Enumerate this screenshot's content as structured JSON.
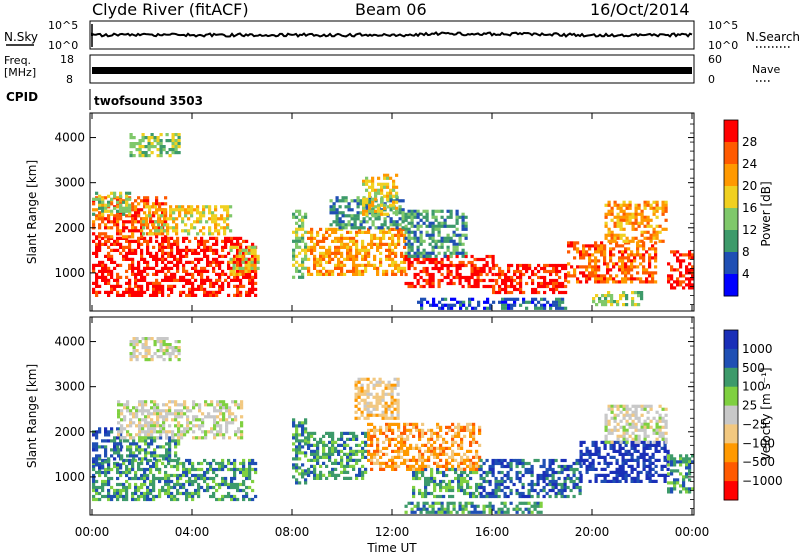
{
  "header": {
    "station": "Clyde River (fitACF)",
    "beam": "Beam 06",
    "date": "16/Oct/2014"
  },
  "top_panels": {
    "nsky_label": "N.Sky",
    "nsearch_label": "N.Search",
    "nsky_ticks": [
      "10^5",
      "10^0"
    ],
    "nsearch_ticks": [
      "10^5",
      "10^0"
    ],
    "freq_label_1": "Freq.",
    "freq_label_2": "[MHz]",
    "freq_ticks": [
      "18",
      "8"
    ],
    "nave_label": "Nave",
    "nave_ticks": [
      "60",
      "0"
    ],
    "cpid_label": "CPID",
    "cpid_value": "twofsound 3503"
  },
  "colors": {
    "power_scale": [
      "#0000ff",
      "#1f4fb4",
      "#3d9a6a",
      "#7fc86a",
      "#f0d020",
      "#ff9900",
      "#ff5a00",
      "#ff0000"
    ],
    "velocity_scale": [
      "#ff0000",
      "#ff5a00",
      "#ff9900",
      "#f2c880",
      "#c8c8c8",
      "#7fd040",
      "#3d9a6a",
      "#1f4fb4",
      "#1a2fb8"
    ]
  },
  "chart_data": [
    {
      "type": "heatmap",
      "name": "Power",
      "xlabel": "",
      "ylabel": "Slant Range [km]",
      "xlim": [
        0,
        24
      ],
      "ylim": [
        200,
        4500
      ],
      "x_ticks": [
        "00:00",
        "04:00",
        "08:00",
        "12:00",
        "16:00",
        "20:00",
        "00:00"
      ],
      "y_ticks": [
        1000,
        2000,
        3000,
        4000
      ],
      "colorbar_label": "Power [dB]",
      "colorbar_ticks": [
        "4",
        "8",
        "12",
        "16",
        "20",
        "24",
        "28"
      ],
      "regions": [
        {
          "t": [
            0.0,
            6.6
          ],
          "r": [
            500,
            1800
          ],
          "level": 7
        },
        {
          "t": [
            0.0,
            3.0
          ],
          "r": [
            1800,
            2700
          ],
          "level": 6
        },
        {
          "t": [
            2.0,
            5.5
          ],
          "r": [
            1900,
            2500
          ],
          "level": 4
        },
        {
          "t": [
            0.0,
            1.5
          ],
          "r": [
            2300,
            2800
          ],
          "level": 3
        },
        {
          "t": [
            1.5,
            3.5
          ],
          "r": [
            3600,
            4100
          ],
          "level": 3
        },
        {
          "t": [
            5.5,
            6.6
          ],
          "r": [
            1000,
            1600
          ],
          "level": 4
        },
        {
          "t": [
            8.0,
            8.6
          ],
          "r": [
            900,
            2400
          ],
          "level": 3
        },
        {
          "t": [
            8.6,
            12.5
          ],
          "r": [
            1000,
            2000
          ],
          "level": 5
        },
        {
          "t": [
            9.5,
            12.5
          ],
          "r": [
            2000,
            2700
          ],
          "level": 2
        },
        {
          "t": [
            10.8,
            12.2
          ],
          "r": [
            2300,
            3200
          ],
          "level": 4
        },
        {
          "t": [
            12.5,
            16.0
          ],
          "r": [
            700,
            1400
          ],
          "level": 7
        },
        {
          "t": [
            12.5,
            15.0
          ],
          "r": [
            1400,
            2400
          ],
          "level": 2
        },
        {
          "t": [
            16.0,
            19.0
          ],
          "r": [
            600,
            1200
          ],
          "level": 7
        },
        {
          "t": [
            19.0,
            22.5
          ],
          "r": [
            800,
            1700
          ],
          "level": 6
        },
        {
          "t": [
            20.5,
            23.0
          ],
          "r": [
            1700,
            2600
          ],
          "level": 5
        },
        {
          "t": [
            23.0,
            24.0
          ],
          "r": [
            700,
            1500
          ],
          "level": 7
        },
        {
          "t": [
            20.0,
            22.0
          ],
          "r": [
            300,
            600
          ],
          "level": 3
        },
        {
          "t": [
            13.0,
            19.0
          ],
          "r": [
            200,
            450
          ],
          "level": 1
        }
      ]
    },
    {
      "type": "heatmap",
      "name": "Velocity",
      "xlabel": "Time UT",
      "ylabel": "Slant Range [km]",
      "xlim": [
        0,
        24
      ],
      "ylim": [
        200,
        4500
      ],
      "x_ticks": [
        "00:00",
        "04:00",
        "08:00",
        "12:00",
        "16:00",
        "20:00",
        "00:00"
      ],
      "y_ticks": [
        1000,
        2000,
        3000,
        4000
      ],
      "colorbar_label": "Velocity [m s⁻¹]",
      "colorbar_ticks": [
        "1000",
        "500",
        "100",
        "25",
        "−25",
        "−100",
        "−500",
        "−1000"
      ],
      "regions": [
        {
          "t": [
            0.0,
            6.6
          ],
          "r": [
            500,
            1400
          ],
          "level": 6
        },
        {
          "t": [
            0.0,
            1.2
          ],
          "r": [
            1200,
            2100
          ],
          "level": 7
        },
        {
          "t": [
            1.0,
            3.5
          ],
          "r": [
            1400,
            1900
          ],
          "level": 6
        },
        {
          "t": [
            1.0,
            6.0
          ],
          "r": [
            1900,
            2700
          ],
          "level": 4
        },
        {
          "t": [
            1.5,
            3.5
          ],
          "r": [
            3600,
            4100
          ],
          "level": 4
        },
        {
          "t": [
            8.0,
            8.6
          ],
          "r": [
            900,
            2300
          ],
          "level": 6
        },
        {
          "t": [
            8.6,
            11.0
          ],
          "r": [
            1000,
            2000
          ],
          "level": 6
        },
        {
          "t": [
            11.0,
            12.8
          ],
          "r": [
            1200,
            2200
          ],
          "level": 2
        },
        {
          "t": [
            10.5,
            12.2
          ],
          "r": [
            2300,
            3200
          ],
          "level": 3
        },
        {
          "t": [
            12.8,
            15.5
          ],
          "r": [
            600,
            1200
          ],
          "level": 6
        },
        {
          "t": [
            12.8,
            15.5
          ],
          "r": [
            1200,
            2200
          ],
          "level": 2
        },
        {
          "t": [
            15.5,
            19.5
          ],
          "r": [
            600,
            1400
          ],
          "level": 7
        },
        {
          "t": [
            19.5,
            23.0
          ],
          "r": [
            900,
            1800
          ],
          "level": 8
        },
        {
          "t": [
            20.5,
            23.0
          ],
          "r": [
            1800,
            2600
          ],
          "level": 4
        },
        {
          "t": [
            23.0,
            24.0
          ],
          "r": [
            700,
            1500
          ],
          "level": 6
        },
        {
          "t": [
            12.5,
            18.0
          ],
          "r": [
            200,
            450
          ],
          "level": 6
        }
      ]
    }
  ]
}
